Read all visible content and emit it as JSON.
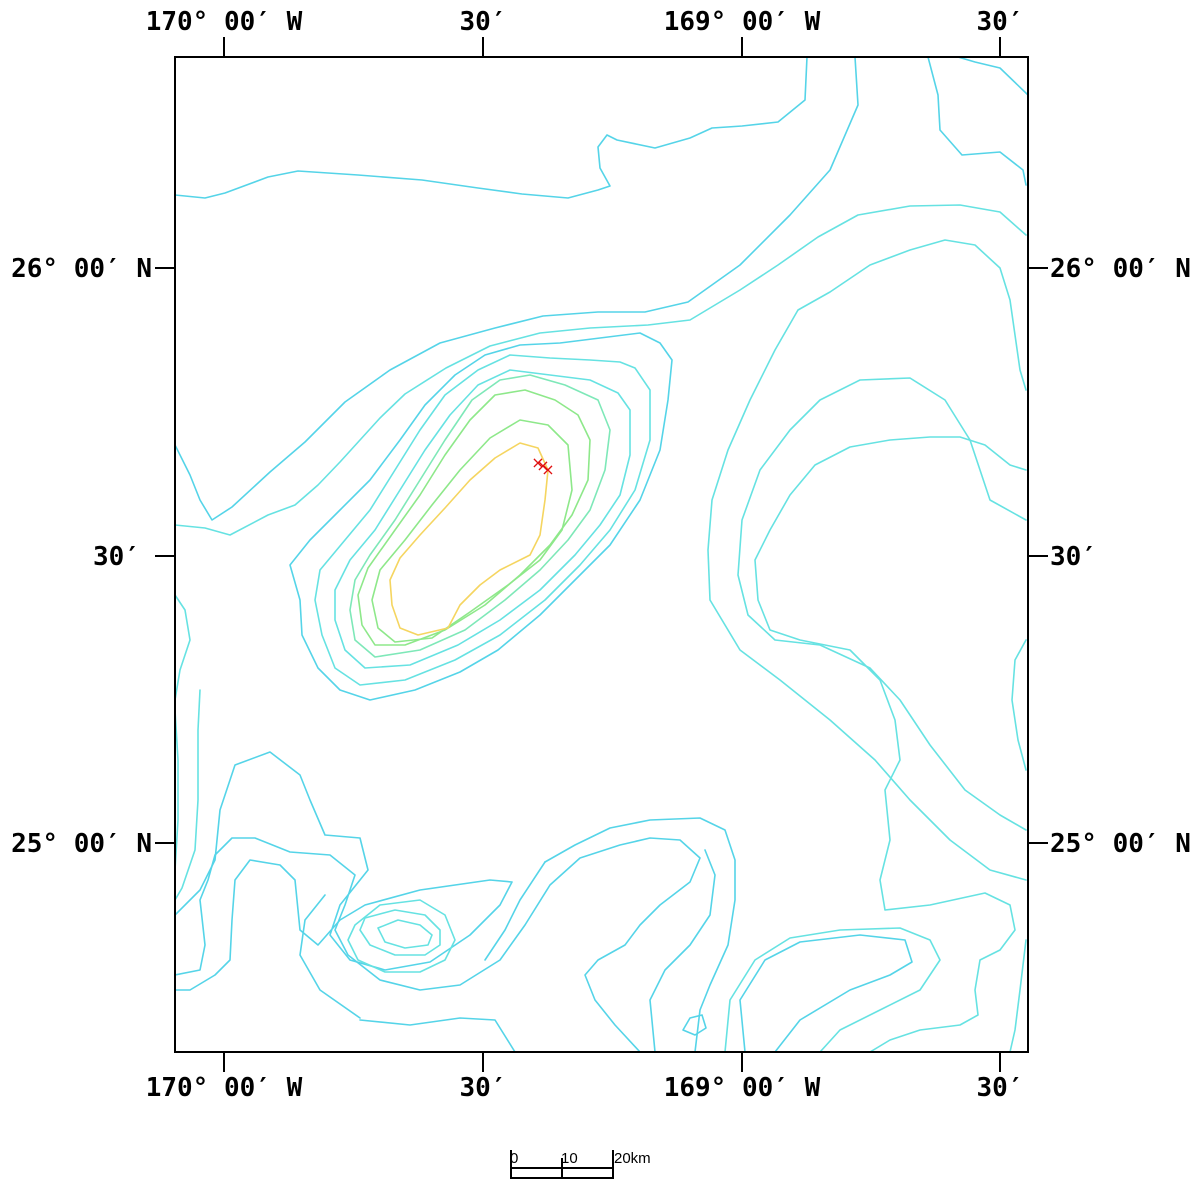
{
  "map": {
    "lon_labels": {
      "top": [
        "170° 00′ W",
        "30′",
        "169° 00′ W",
        "30′"
      ],
      "bottom": [
        "170° 00′ W",
        "30′",
        "169° 00′ W",
        "30′"
      ]
    },
    "lat_labels": {
      "left": [
        "26° 00′ N",
        "30′",
        "25° 00′ N"
      ],
      "right": [
        "26° 00′ N",
        "30′",
        "25° 00′ N"
      ]
    },
    "colors": {
      "contour_deep": "#55d4e8",
      "contour_mid": "#66e2e2",
      "contour_shallow": "#7ee8b8",
      "contour_green": "#8ee88a",
      "contour_top": "#f5d560",
      "marker": "#e01010",
      "frame": "#000000"
    },
    "markers": {
      "symbol": "×",
      "count": 3
    }
  },
  "scale_bar": {
    "labels": [
      "0",
      "10",
      "20km"
    ]
  }
}
